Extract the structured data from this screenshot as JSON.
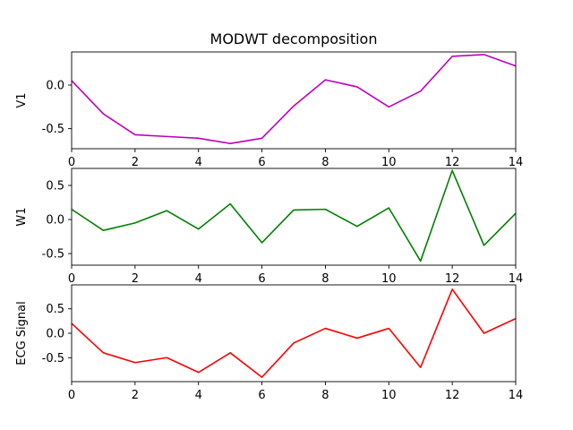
{
  "chart_data": {
    "type": "line",
    "title": "MODWT decomposition",
    "x": [
      0,
      1,
      2,
      3,
      4,
      5,
      6,
      7,
      8,
      9,
      10,
      11,
      12,
      13,
      14
    ],
    "xticks": [
      "0",
      "2",
      "4",
      "6",
      "8",
      "10",
      "12",
      "14"
    ],
    "xlim": [
      0,
      14
    ],
    "grid": false,
    "subplots": [
      {
        "ylabel": "V1",
        "color": "#bf00bf",
        "ylim": [
          -0.73,
          0.38
        ],
        "yticks": [
          "0.0",
          "-0.5"
        ],
        "ytick_values": [
          0.0,
          -0.5
        ],
        "values": [
          0.05,
          -0.33,
          -0.57,
          -0.59,
          -0.61,
          -0.67,
          -0.61,
          -0.24,
          0.06,
          -0.02,
          -0.25,
          -0.07,
          0.33,
          0.35,
          0.22
        ]
      },
      {
        "ylabel": "W1",
        "color": "#008000",
        "ylim": [
          -0.67,
          0.75
        ],
        "yticks": [
          "0.5",
          "0.0",
          "-0.5"
        ],
        "ytick_values": [
          0.5,
          0.0,
          -0.5
        ],
        "values": [
          0.15,
          -0.16,
          -0.05,
          0.13,
          -0.14,
          0.23,
          -0.34,
          0.14,
          0.15,
          -0.1,
          0.17,
          -0.61,
          0.72,
          -0.38,
          0.09
        ]
      },
      {
        "ylabel": "ECG Signal",
        "color": "#ff0000",
        "ylim": [
          -0.99,
          0.99
        ],
        "yticks": [
          "0.5",
          "0.0",
          "-0.5"
        ],
        "ytick_values": [
          0.5,
          0.0,
          -0.5
        ],
        "values": [
          0.2,
          -0.4,
          -0.6,
          -0.5,
          -0.8,
          -0.4,
          -0.9,
          -0.2,
          0.1,
          -0.1,
          0.1,
          -0.7,
          0.9,
          0.0,
          0.3
        ]
      }
    ]
  }
}
